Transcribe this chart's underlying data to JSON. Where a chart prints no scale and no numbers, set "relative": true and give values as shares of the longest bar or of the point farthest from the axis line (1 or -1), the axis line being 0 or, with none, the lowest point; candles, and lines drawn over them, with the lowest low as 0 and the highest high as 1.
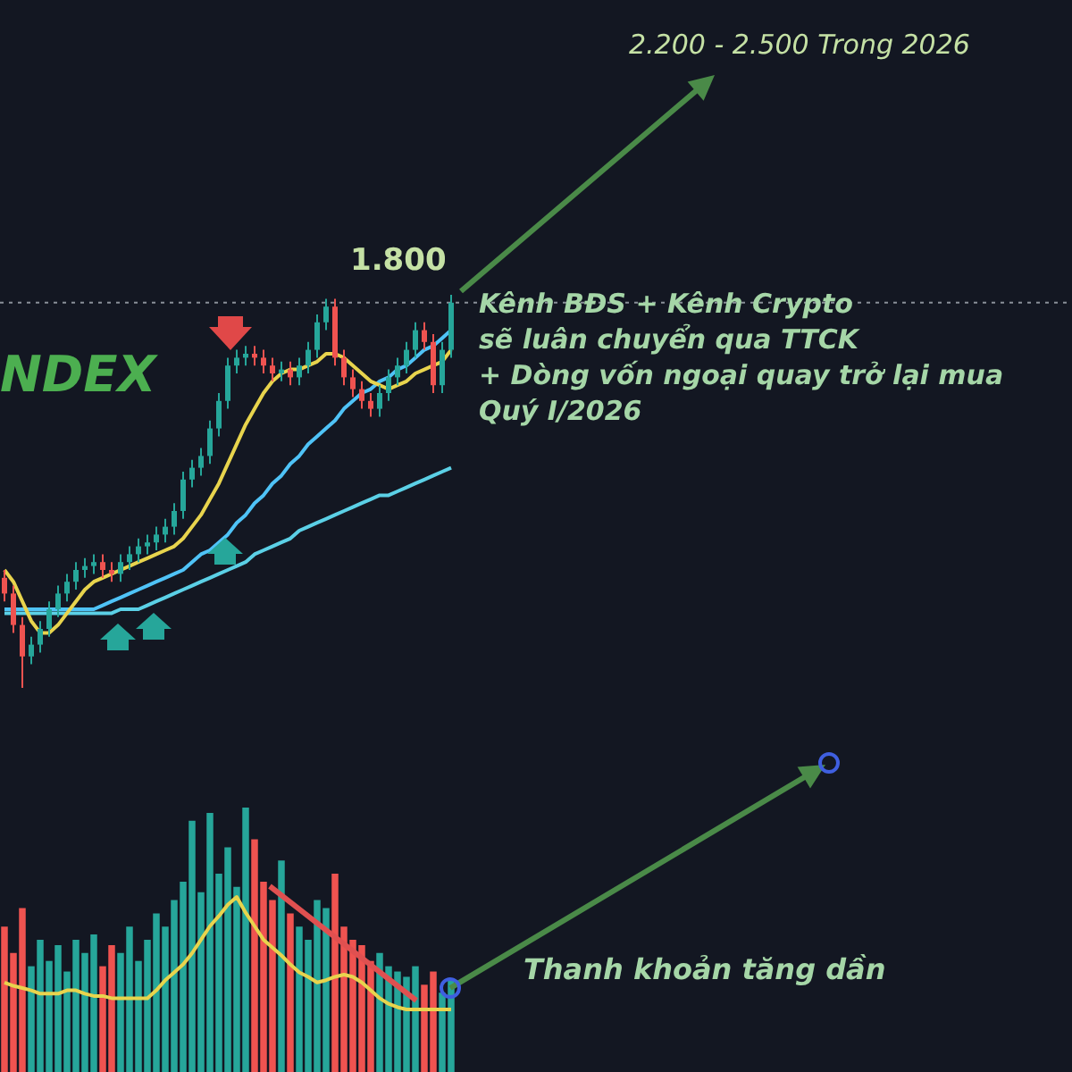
{
  "chart_data": [
    {
      "type": "candlestick",
      "relative": true,
      "title": "NDEX",
      "categories": [
        null,
        null,
        null,
        null,
        null,
        null,
        null,
        null,
        null,
        null,
        null,
        null,
        null,
        null,
        null,
        null,
        null,
        null,
        null,
        null,
        null,
        null,
        null,
        null,
        null,
        null,
        null,
        null,
        null,
        null,
        null,
        null,
        null,
        null,
        null,
        null,
        null,
        null,
        null,
        null,
        null,
        null,
        null,
        null,
        null,
        null,
        null,
        null,
        null,
        null,
        null
      ],
      "ohlc": [
        [
          0.28,
          0.3,
          0.22,
          0.24
        ],
        [
          0.24,
          0.26,
          0.14,
          0.16
        ],
        [
          0.16,
          0.18,
          0,
          0.08
        ],
        [
          0.08,
          0.13,
          0.06,
          0.11
        ],
        [
          0.11,
          0.17,
          0.09,
          0.15
        ],
        [
          0.15,
          0.22,
          0.13,
          0.2
        ],
        [
          0.2,
          0.26,
          0.18,
          0.24
        ],
        [
          0.24,
          0.29,
          0.22,
          0.27
        ],
        [
          0.27,
          0.32,
          0.25,
          0.3
        ],
        [
          0.3,
          0.33,
          0.28,
          0.31
        ],
        [
          0.31,
          0.34,
          0.29,
          0.32
        ],
        [
          0.32,
          0.34,
          0.28,
          0.3
        ],
        [
          0.3,
          0.32,
          0.27,
          0.29
        ],
        [
          0.29,
          0.34,
          0.27,
          0.32
        ],
        [
          0.32,
          0.36,
          0.3,
          0.34
        ],
        [
          0.34,
          0.38,
          0.32,
          0.36
        ],
        [
          0.36,
          0.39,
          0.34,
          0.37
        ],
        [
          0.37,
          0.41,
          0.35,
          0.39
        ],
        [
          0.39,
          0.43,
          0.37,
          0.41
        ],
        [
          0.41,
          0.47,
          0.39,
          0.45
        ],
        [
          0.45,
          0.55,
          0.43,
          0.53
        ],
        [
          0.53,
          0.58,
          0.51,
          0.56
        ],
        [
          0.56,
          0.61,
          0.54,
          0.59
        ],
        [
          0.59,
          0.68,
          0.57,
          0.66
        ],
        [
          0.66,
          0.75,
          0.64,
          0.73
        ],
        [
          0.73,
          0.84,
          0.71,
          0.82
        ],
        [
          0.82,
          0.86,
          0.8,
          0.84
        ],
        [
          0.84,
          0.87,
          0.82,
          0.85
        ],
        [
          0.85,
          0.87,
          0.82,
          0.84
        ],
        [
          0.84,
          0.86,
          0.8,
          0.82
        ],
        [
          0.82,
          0.84,
          0.78,
          0.8
        ],
        [
          0.8,
          0.83,
          0.78,
          0.81
        ],
        [
          0.81,
          0.83,
          0.77,
          0.79
        ],
        [
          0.79,
          0.84,
          0.77,
          0.82
        ],
        [
          0.82,
          0.88,
          0.8,
          0.86
        ],
        [
          0.86,
          0.95,
          0.84,
          0.93
        ],
        [
          0.93,
          0.99,
          0.91,
          0.97
        ],
        [
          0.97,
          0.99,
          0.82,
          0.84
        ],
        [
          0.84,
          0.86,
          0.77,
          0.79
        ],
        [
          0.79,
          0.81,
          0.74,
          0.76
        ],
        [
          0.76,
          0.78,
          0.71,
          0.73
        ],
        [
          0.73,
          0.75,
          0.69,
          0.71
        ],
        [
          0.71,
          0.77,
          0.69,
          0.75
        ],
        [
          0.75,
          0.81,
          0.73,
          0.79
        ],
        [
          0.79,
          0.84,
          0.77,
          0.82
        ],
        [
          0.82,
          0.88,
          0.8,
          0.86
        ],
        [
          0.86,
          0.93,
          0.84,
          0.91
        ],
        [
          0.91,
          0.93,
          0.86,
          0.88
        ],
        [
          0.88,
          0.9,
          0.75,
          0.77
        ],
        [
          0.77,
          0.88,
          0.75,
          0.86
        ],
        [
          0.86,
          1,
          0.84,
          0.98
        ]
      ],
      "colors": [
        "#ef5350",
        "#ef5350",
        "#ef5350",
        "#26a69a",
        "#26a69a",
        "#26a69a",
        "#26a69a",
        "#26a69a",
        "#26a69a",
        "#26a69a",
        "#26a69a",
        "#ef5350",
        "#ef5350",
        "#26a69a",
        "#26a69a",
        "#26a69a",
        "#26a69a",
        "#26a69a",
        "#26a69a",
        "#26a69a",
        "#26a69a",
        "#26a69a",
        "#26a69a",
        "#26a69a",
        "#26a69a",
        "#26a69a",
        "#26a69a",
        "#26a69a",
        "#ef5350",
        "#ef5350",
        "#ef5350",
        "#26a69a",
        "#ef5350",
        "#26a69a",
        "#26a69a",
        "#26a69a",
        "#26a69a",
        "#ef5350",
        "#ef5350",
        "#ef5350",
        "#ef5350",
        "#ef5350",
        "#26a69a",
        "#26a69a",
        "#26a69a",
        "#26a69a",
        "#26a69a",
        "#ef5350",
        "#ef5350",
        "#26a69a",
        "#26a69a"
      ],
      "series": [
        {
          "type": "line",
          "color": "#e8d44d",
          "values": [
            0.3,
            0.27,
            0.22,
            0.17,
            0.14,
            0.14,
            0.16,
            0.19,
            0.22,
            0.25,
            0.27,
            0.28,
            0.29,
            0.3,
            0.31,
            0.32,
            0.33,
            0.34,
            0.35,
            0.36,
            0.38,
            0.41,
            0.44,
            0.48,
            0.52,
            0.57,
            0.62,
            0.67,
            0.71,
            0.75,
            0.78,
            0.8,
            0.81,
            0.81,
            0.82,
            0.83,
            0.85,
            0.85,
            0.84,
            0.82,
            0.8,
            0.78,
            0.77,
            0.76,
            0.77,
            0.78,
            0.8,
            0.81,
            0.82,
            0.83,
            0.86
          ]
        },
        {
          "type": "line",
          "color": "#4fc3f7",
          "values": [
            0.2,
            0.2,
            0.2,
            0.2,
            0.2,
            0.2,
            0.2,
            0.2,
            0.2,
            0.2,
            0.2,
            0.21,
            0.22,
            0.23,
            0.24,
            0.25,
            0.26,
            0.27,
            0.28,
            0.29,
            0.3,
            0.32,
            0.34,
            0.35,
            0.37,
            0.39,
            0.42,
            0.44,
            0.47,
            0.49,
            0.52,
            0.54,
            0.57,
            0.59,
            0.62,
            0.64,
            0.66,
            0.68,
            0.71,
            0.73,
            0.75,
            0.76,
            0.78,
            0.79,
            0.81,
            0.82,
            0.84,
            0.86,
            0.87,
            0.89,
            0.91
          ]
        },
        {
          "type": "line",
          "color": "#5bd0e6",
          "values": [
            0.19,
            0.19,
            0.19,
            0.19,
            0.19,
            0.19,
            0.19,
            0.19,
            0.19,
            0.19,
            0.19,
            0.19,
            0.19,
            0.2,
            0.2,
            0.2,
            0.21,
            0.22,
            0.23,
            0.24,
            0.25,
            0.26,
            0.27,
            0.28,
            0.29,
            0.3,
            0.31,
            0.32,
            0.34,
            0.35,
            0.36,
            0.37,
            0.38,
            0.4,
            0.41,
            0.42,
            0.43,
            0.44,
            0.45,
            0.46,
            0.47,
            0.48,
            0.49,
            0.49,
            0.5,
            0.51,
            0.52,
            0.53,
            0.54,
            0.55,
            0.56
          ]
        }
      ],
      "ref_lines": [
        {
          "axis": "y",
          "value": 0.98,
          "color": "#8a9099",
          "line_style": "dotted"
        }
      ],
      "annotations": [
        "2.200 - 2.500 Trong 2026",
        "Kênh BĐS + Kênh Crypto\nsẽ luân chuyển qua TTCK\n+ Dòng vốn ngoại quay trở lại mua\nQuý I/2026",
        "1.800"
      ]
    },
    {
      "type": "bar",
      "relative": true,
      "categories": [
        null,
        null,
        null,
        null,
        null,
        null,
        null,
        null,
        null,
        null,
        null,
        null,
        null,
        null,
        null,
        null,
        null,
        null,
        null,
        null,
        null,
        null,
        null,
        null,
        null,
        null,
        null,
        null,
        null,
        null,
        null,
        null,
        null,
        null,
        null,
        null,
        null,
        null,
        null,
        null,
        null,
        null,
        null,
        null,
        null,
        null,
        null,
        null,
        null,
        null,
        null
      ],
      "series": [
        {
          "type": "bar",
          "values": [
            0.55,
            0.45,
            0.62,
            0.4,
            0.5,
            0.42,
            0.48,
            0.38,
            0.5,
            0.45,
            0.52,
            0.4,
            0.48,
            0.45,
            0.55,
            0.42,
            0.5,
            0.6,
            0.55,
            0.65,
            0.72,
            0.95,
            0.68,
            0.98,
            0.75,
            0.85,
            0.7,
            1.0,
            0.88,
            0.72,
            0.65,
            0.8,
            0.6,
            0.55,
            0.5,
            0.65,
            0.62,
            0.75,
            0.55,
            0.5,
            0.48,
            0.42,
            0.45,
            0.4,
            0.38,
            0.36,
            0.4,
            0.33,
            0.38,
            0.3,
            0.35
          ],
          "colors": [
            "#ef5350",
            "#ef5350",
            "#ef5350",
            "#26a69a",
            "#26a69a",
            "#26a69a",
            "#26a69a",
            "#26a69a",
            "#26a69a",
            "#26a69a",
            "#26a69a",
            "#ef5350",
            "#ef5350",
            "#26a69a",
            "#26a69a",
            "#26a69a",
            "#26a69a",
            "#26a69a",
            "#26a69a",
            "#26a69a",
            "#26a69a",
            "#26a69a",
            "#26a69a",
            "#26a69a",
            "#26a69a",
            "#26a69a",
            "#26a69a",
            "#26a69a",
            "#ef5350",
            "#ef5350",
            "#ef5350",
            "#26a69a",
            "#ef5350",
            "#26a69a",
            "#26a69a",
            "#26a69a",
            "#26a69a",
            "#ef5350",
            "#ef5350",
            "#ef5350",
            "#ef5350",
            "#ef5350",
            "#26a69a",
            "#26a69a",
            "#26a69a",
            "#26a69a",
            "#26a69a",
            "#ef5350",
            "#ef5350",
            "#26a69a",
            "#26a69a"
          ]
        }
      ],
      "annotations": [
        "Thanh khoản tăng dần"
      ]
    },
    {
      "type": "line",
      "relative": true,
      "categories": [
        null,
        null,
        null,
        null,
        null,
        null,
        null,
        null,
        null,
        null,
        null,
        null,
        null,
        null,
        null,
        null,
        null,
        null,
        null,
        null,
        null,
        null,
        null,
        null,
        null,
        null,
        null,
        null,
        null,
        null,
        null,
        null,
        null,
        null,
        null,
        null,
        null,
        null,
        null,
        null,
        null,
        null,
        null,
        null,
        null,
        null,
        null,
        null,
        null,
        null,
        null
      ],
      "series": [
        {
          "type": "line",
          "color": "#e8d44d",
          "values": [
            0.24,
            0.21,
            0.19,
            0.17,
            0.14,
            0.14,
            0.14,
            0.17,
            0.17,
            0.14,
            0.12,
            0.12,
            0.1,
            0.1,
            0.1,
            0.1,
            0.1,
            0.17,
            0.26,
            0.33,
            0.4,
            0.5,
            0.62,
            0.74,
            0.83,
            0.93,
            1,
            0.86,
            0.74,
            0.62,
            0.55,
            0.48,
            0.4,
            0.33,
            0.29,
            0.24,
            0.26,
            0.29,
            0.31,
            0.29,
            0.24,
            0.17,
            0.1,
            0.05,
            0.02,
            0,
            0,
            0,
            0,
            0,
            0
          ]
        }
      ]
    }
  ]
}
